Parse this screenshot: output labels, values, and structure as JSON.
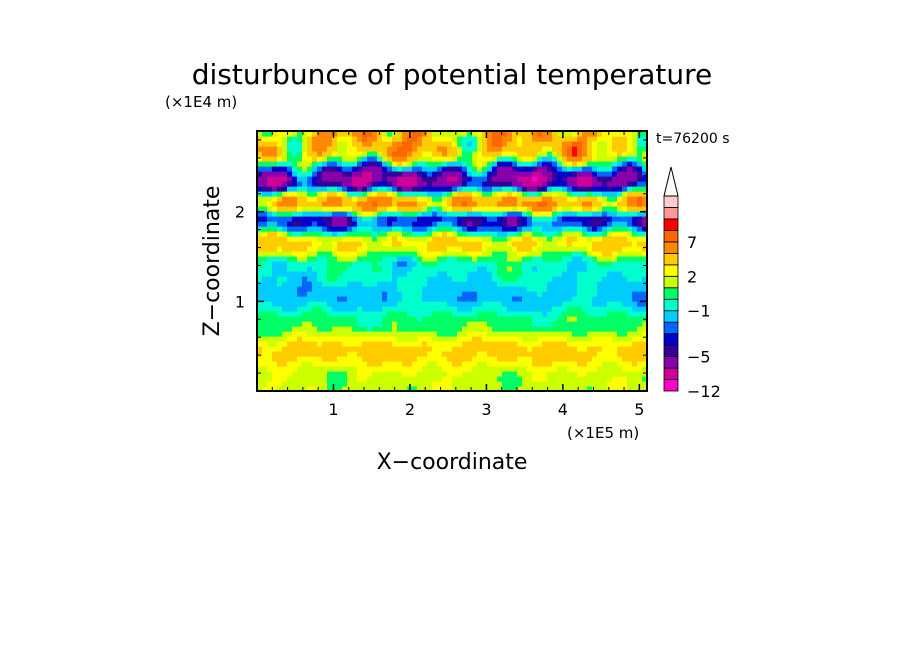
{
  "chart_data": {
    "type": "heatmap",
    "title": "disturbunce of potential temperature",
    "xlabel": "X−coordinate",
    "ylabel": "Z−coordinate",
    "x_unit": "(×1E5 m)",
    "y_unit": "(×1E4 m)",
    "time_label": "t=76200 s",
    "xlim": [
      0,
      5.1
    ],
    "ylim": [
      0,
      2.9
    ],
    "x_ticks": [
      1,
      2,
      3,
      4,
      5
    ],
    "x_tick_labels": [
      "1",
      "2",
      "3",
      "4",
      "5"
    ],
    "y_ticks": [
      1,
      2
    ],
    "y_tick_labels": [
      "1",
      "2"
    ],
    "colorbar": {
      "extend_max": true,
      "levels": [
        -12,
        -9,
        -7,
        -5,
        -4,
        -3,
        -2,
        -1,
        0,
        1,
        2,
        3,
        5,
        7,
        9,
        11
      ],
      "colors": [
        "#ff00cc",
        "#cc0099",
        "#8800aa",
        "#330099",
        "#0000cc",
        "#0066ff",
        "#00ccff",
        "#00ffcc",
        "#00ff66",
        "#ccff00",
        "#ffff00",
        "#ffcc00",
        "#ff8800",
        "#ff6600",
        "#ff0000",
        "#ff9999",
        "#ffcccc"
      ],
      "tick_values": [
        -12,
        -5,
        -1,
        2,
        7
      ],
      "tick_labels": [
        "−12",
        "−5",
        "−1",
        "2",
        "7"
      ]
    },
    "field_description": "Layered potential temperature disturbance field; alternating bands of warm (orange/red) and cold (blue/purple) anomalies in the upper levels, cool cyan band near Z=1.1, warm yellow-orange band near Z=0.5.",
    "bands": [
      {
        "z": 0.15,
        "value": 1.5
      },
      {
        "z": 0.45,
        "value": 3.5
      },
      {
        "z": 0.75,
        "value": 0.5
      },
      {
        "z": 1.05,
        "value": -1.5
      },
      {
        "z": 1.4,
        "value": -0.5
      },
      {
        "z": 1.65,
        "value": 3.0
      },
      {
        "z": 1.9,
        "value": -3.5
      },
      {
        "z": 2.1,
        "value": 5.0
      },
      {
        "z": 2.35,
        "value": -6.0
      },
      {
        "z": 2.7,
        "value": 4.0
      }
    ]
  }
}
